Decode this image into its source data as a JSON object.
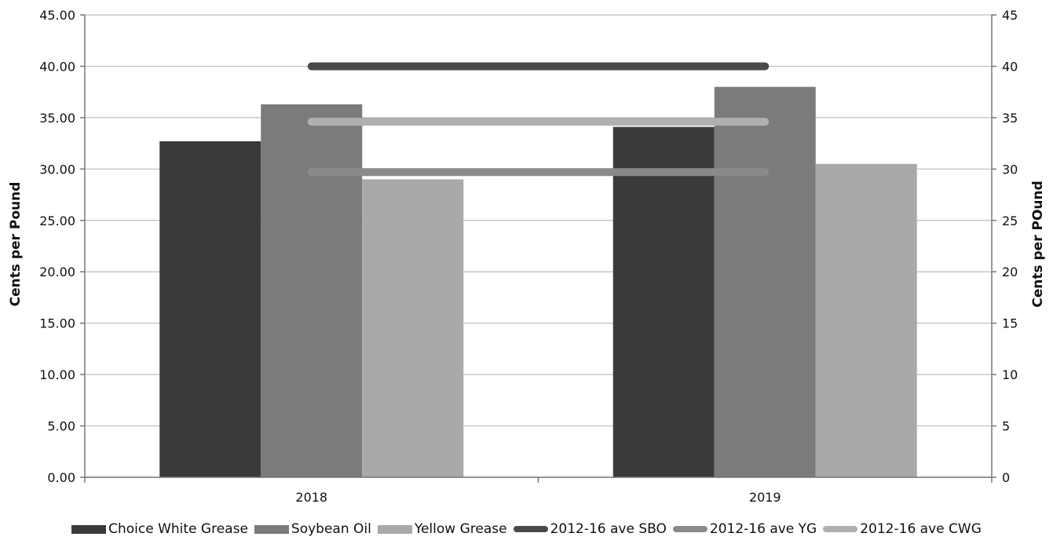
{
  "chart_data": {
    "type": "bar",
    "categories": [
      "2018",
      "2019"
    ],
    "series": [
      {
        "name": "Choice White Grease",
        "kind": "bar",
        "values": [
          32.7,
          34.1
        ],
        "color": "#3a3a3a"
      },
      {
        "name": "Soybean Oil",
        "kind": "bar",
        "values": [
          36.3,
          38.0
        ],
        "color": "#7b7b7b"
      },
      {
        "name": "Yellow Grease",
        "kind": "bar",
        "values": [
          29.0,
          30.5
        ],
        "color": "#a9a9a9"
      }
    ],
    "reference_lines": [
      {
        "name": "2012-16 ave SBO",
        "value": 40.0,
        "color": "#4a4a4a"
      },
      {
        "name": "2012-16 ave YG",
        "value": 29.7,
        "color": "#8a8a8a"
      },
      {
        "name": "2012-16 ave CWG",
        "value": 34.6,
        "color": "#b0b0b0"
      }
    ],
    "ylabel": "Cents per Pound",
    "ylabel_right": "Cents per POund",
    "ylim": [
      0,
      45
    ],
    "y_ticks": [
      "0.00",
      "5.00",
      "10.00",
      "15.00",
      "20.00",
      "25.00",
      "30.00",
      "35.00",
      "40.00",
      "45.00"
    ],
    "y_ticks_right": [
      "0",
      "5",
      "10",
      "15",
      "20",
      "25",
      "30",
      "35",
      "40",
      "45"
    ],
    "grid": true,
    "legend_position": "bottom"
  }
}
